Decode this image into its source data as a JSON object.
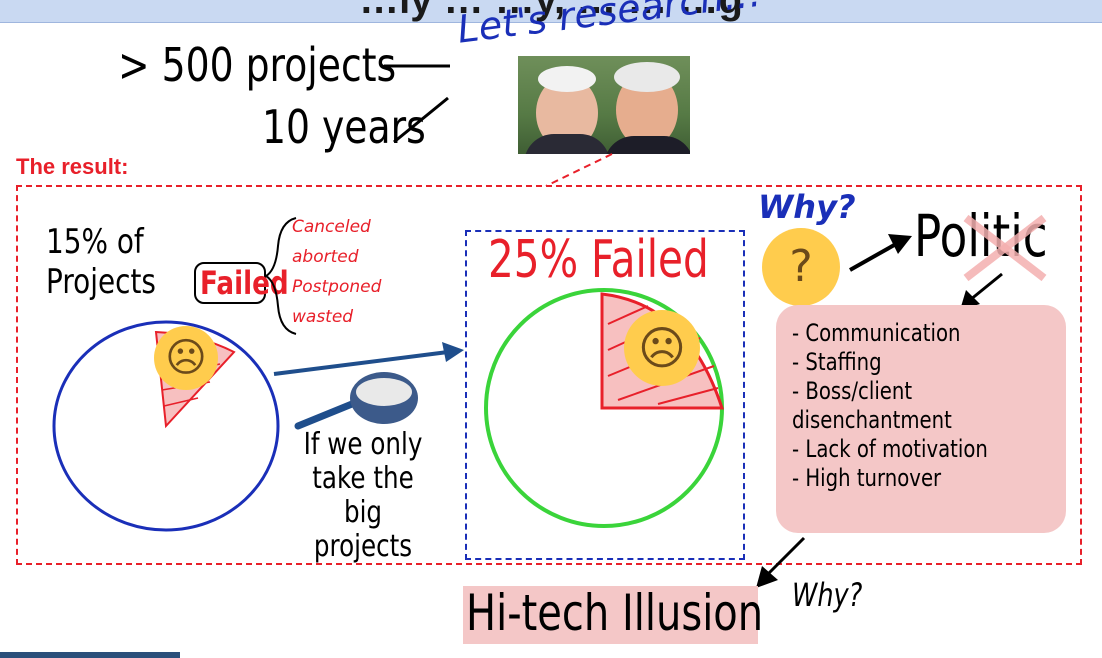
{
  "header": {
    "title": "…ly … …y, … … …g"
  },
  "top": {
    "projects": "> 500 projects",
    "years": "10 years",
    "research": "Let's research..!"
  },
  "result_label": "The result:",
  "left": {
    "line1": "15% of",
    "line2": "Projects",
    "failed": "Failed",
    "reasons": [
      "Canceled",
      "aborted",
      "Postponed",
      "wasted"
    ]
  },
  "filter_caption": [
    "If we only",
    "take the big",
    "projects"
  ],
  "middle": {
    "failed_pct": "25% Failed"
  },
  "why_top": "Why?",
  "politic": "Politic",
  "causes": [
    "- Communication",
    "- Staffing",
    "- Boss/client",
    "disenchantment",
    "- Lack of motivation",
    "- High turnover"
  ],
  "illusion": "Hi-tech Illusion",
  "why_bottom": "Why?",
  "colors": {
    "red": "#e8202a",
    "blue": "#1a2fb8",
    "green": "#3ad43a",
    "pink": "#f4c7c7",
    "arrow": "#1f4e8c"
  },
  "icons": {
    "sad": "sad-face-emoji",
    "crying": "crying-face-emoji",
    "thinking": "thinking-face-emoji",
    "sieve": "sieve-icon"
  }
}
